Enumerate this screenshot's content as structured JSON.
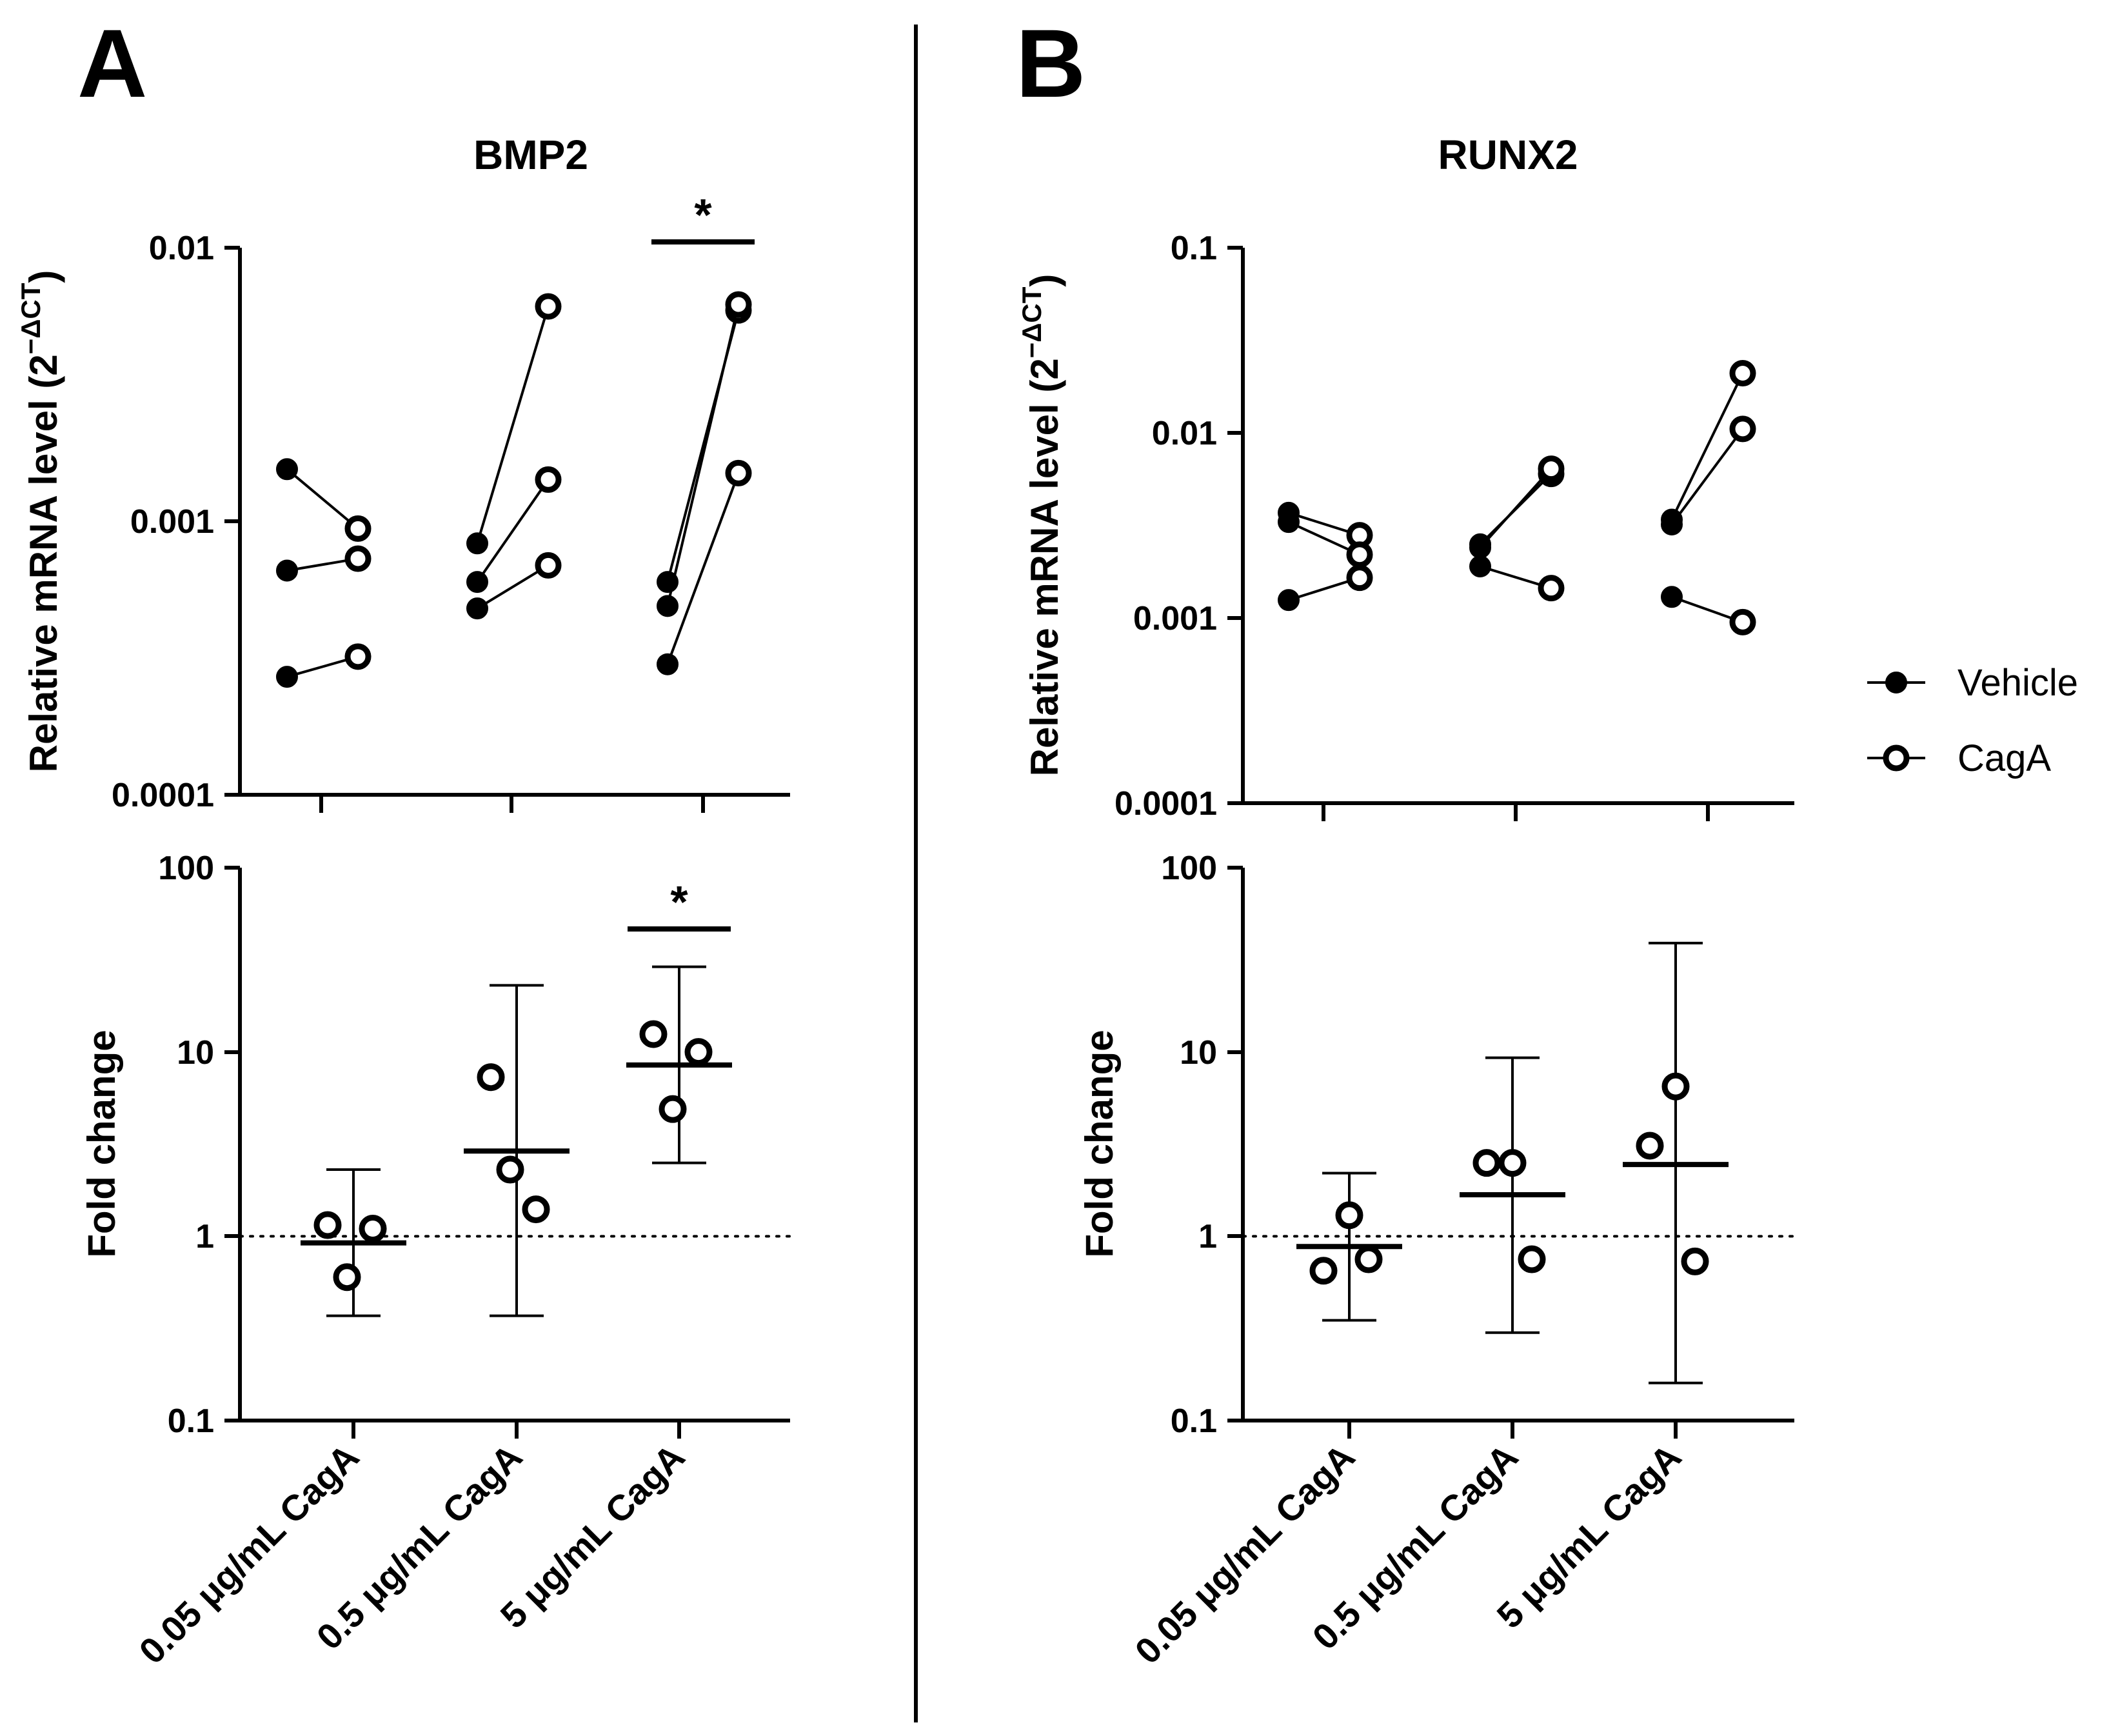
{
  "panels": [
    {
      "letter": "A",
      "gene": "BMP2"
    },
    {
      "letter": "B",
      "gene": "RUNX2"
    }
  ],
  "legend": {
    "vehicle": "Vehicle",
    "caga": "CagA"
  },
  "chart_data": [
    {
      "id": "A-top",
      "type": "scatter",
      "title": "BMP2",
      "ylabel": "Relative mRNA level (2^-ΔCT)",
      "ylabel_parts": {
        "main": "Relative mRNA level (2",
        "sup": "−ΔCT",
        "close": ")"
      },
      "yscale": "log",
      "ylim": [
        0.0001,
        0.01
      ],
      "ytick_labels": [
        "0.01",
        "0.001",
        "0.0001"
      ],
      "categories": [
        "0.05 μg/mL CagA",
        "0.5 μg/mL CagA",
        "5 μg/mL CagA"
      ],
      "series": [
        {
          "name": "Vehicle",
          "values": [
            [
              0.00155,
              0.00066,
              0.00027
            ],
            [
              0.00083,
              0.0006,
              0.00048
            ],
            [
              0.0006,
              0.00049,
              0.0003
            ]
          ]
        },
        {
          "name": "CagA",
          "values": [
            [
              0.00094,
              0.00073,
              0.00032
            ],
            [
              0.0061,
              0.00142,
              0.00069
            ],
            [
              0.0059,
              0.0062,
              0.0015
            ]
          ]
        }
      ],
      "significance": [
        {
          "group": 2,
          "label": "*"
        }
      ]
    },
    {
      "id": "A-bottom",
      "type": "scatter",
      "ylabel": "Fold change",
      "yscale": "log",
      "ylim": [
        0.1,
        100
      ],
      "ytick_labels": [
        "100",
        "10",
        "1",
        "0.1"
      ],
      "categories": [
        "0.05 μg/mL CagA",
        "0.5 μg/mL CagA",
        "5 μg/mL CagA"
      ],
      "points": [
        [
          1.15,
          0.6,
          1.1
        ],
        [
          7.3,
          2.3,
          1.4
        ],
        [
          12.5,
          4.9,
          10.0
        ]
      ],
      "mean": [
        0.92,
        2.9,
        8.5
      ],
      "err_low": [
        0.37,
        0.37,
        2.5
      ],
      "err_high": [
        2.3,
        23.0,
        29.0
      ],
      "reference_line": 1,
      "significance": [
        {
          "group": 2,
          "label": "*"
        }
      ]
    },
    {
      "id": "B-top",
      "type": "scatter",
      "title": "RUNX2",
      "ylabel": "Relative mRNA level (2^-ΔCT)",
      "ylabel_parts": {
        "main": "Relative mRNA level (2",
        "sup": "−ΔCT",
        "close": ")"
      },
      "yscale": "log",
      "ylim": [
        0.0001,
        0.1
      ],
      "ytick_labels": [
        "0.1",
        "0.01",
        "0.001",
        "0.0001"
      ],
      "categories": [
        "0.05 μg/mL CagA",
        "0.5 μg/mL CagA",
        "5 μg/mL CagA"
      ],
      "series": [
        {
          "name": "Vehicle",
          "values": [
            [
              0.0037,
              0.0033,
              0.00125
            ],
            [
              0.0025,
              0.0024,
              0.0019
            ],
            [
              0.0034,
              0.0032,
              0.0013
            ]
          ]
        },
        {
          "name": "CagA",
          "values": [
            [
              0.0028,
              0.0022,
              0.00165
            ],
            [
              0.006,
              0.0064,
              0.00145
            ],
            [
              0.021,
              0.0105,
              0.00095
            ]
          ]
        }
      ]
    },
    {
      "id": "B-bottom",
      "type": "scatter",
      "ylabel": "Fold change",
      "yscale": "log",
      "ylim": [
        0.1,
        100
      ],
      "ytick_labels": [
        "100",
        "10",
        "1",
        "0.1"
      ],
      "categories": [
        "0.05 μg/mL CagA",
        "0.5 μg/mL CagA",
        "5 μg/mL CagA"
      ],
      "points": [
        [
          1.3,
          0.65,
          0.75
        ],
        [
          2.5,
          2.5,
          0.75
        ],
        [
          6.5,
          3.1,
          0.73
        ]
      ],
      "mean": [
        0.88,
        1.68,
        2.45
      ],
      "err_low": [
        0.35,
        0.3,
        0.16
      ],
      "err_high": [
        2.2,
        9.3,
        39.0
      ],
      "reference_line": 1
    }
  ]
}
